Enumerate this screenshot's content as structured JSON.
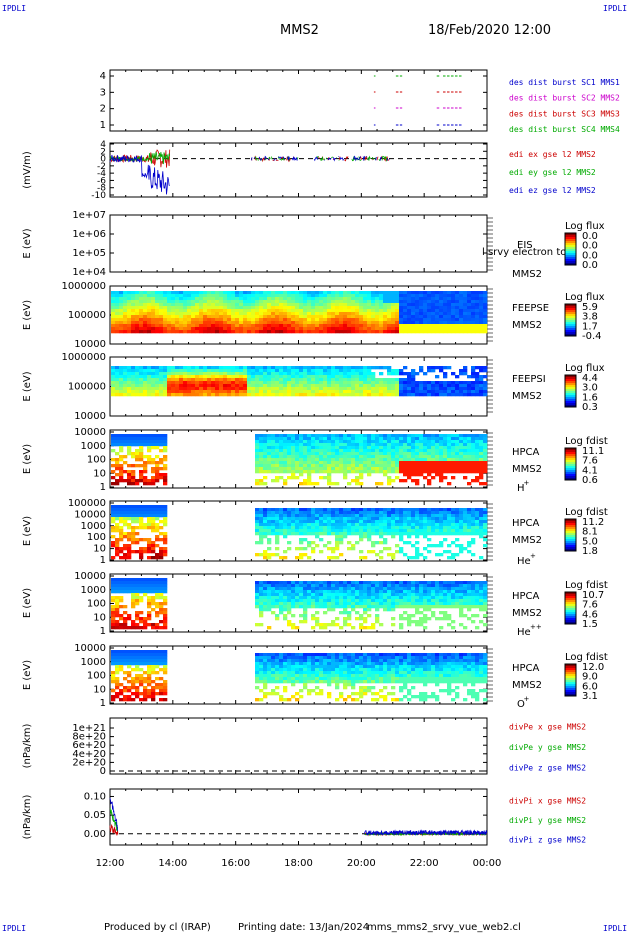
{
  "header": {
    "left_tag": "IPDLI",
    "right_tag": "IPDLI",
    "title": "MMS2",
    "datetime": "18/Feb/2020 12:00"
  },
  "footer": {
    "left_tag": "IPDLI",
    "right_tag": "IPDLI",
    "produced_by": "Produced by cl (IRAP)",
    "printing_date": "Printing date: 13/Jan/2024",
    "script_name": "mms_mms2_srvy_vue_web2.cl"
  },
  "colors": {
    "mms1": "#0000cc",
    "mms2": "#cc00cc",
    "mms3": "#cc0000",
    "mms4": "#00aa00",
    "red": "#cc0000",
    "green": "#00aa00",
    "blue": "#0000cc"
  },
  "time_axis": {
    "ticks": [
      "12:00",
      "14:00",
      "16:00",
      "18:00",
      "20:00",
      "22:00",
      "00:00"
    ],
    "range_hours": [
      12,
      24
    ]
  },
  "chart_data": [
    {
      "id": "burst",
      "type": "scatter",
      "ylabel": "",
      "yticks": [
        "4",
        "3",
        "2",
        "1"
      ],
      "legend": [
        {
          "label": "des dist burst SC1 MMS1",
          "color": "#0000cc"
        },
        {
          "label": "des dist burst SC2 MMS2",
          "color": "#cc00cc"
        },
        {
          "label": "des dist burst SC3 MMS3",
          "color": "#cc0000"
        },
        {
          "label": "des dist burst SC4 MMS4",
          "color": "#00aa00"
        }
      ],
      "intervals_hours": [
        [
          20.4,
          20.45
        ],
        [
          21.1,
          21.3
        ],
        [
          22.4,
          22.5
        ],
        [
          22.6,
          23.2
        ]
      ]
    },
    {
      "id": "edi",
      "type": "line",
      "ylabel": "(mV/m)",
      "yticks": [
        "4",
        "2",
        "0",
        "-2",
        "-4",
        "-6",
        "-8",
        "-10"
      ],
      "ylim": [
        -10,
        4
      ],
      "legend": [
        {
          "label": "edi ex gse l2 MMS2",
          "color": "#cc0000"
        },
        {
          "label": "edi ey gse l2 MMS2",
          "color": "#00aa00"
        },
        {
          "label": "edi ez gse l2 MMS2",
          "color": "#0000cc"
        }
      ],
      "data_intervals_hours": [
        [
          12.0,
          13.9
        ],
        [
          16.5,
          18.0
        ],
        [
          18.5,
          20.9
        ]
      ]
    },
    {
      "id": "eis",
      "type": "heatmap",
      "ylabel": "E (eV)",
      "yticks": [
        "1e+07",
        "1e+06",
        "1e+05",
        "1e+04"
      ],
      "label_lines": [
        "EIS",
        "MMS2"
      ],
      "overlay_text": "l srvy electron to",
      "colorbar": {
        "title": "Log flux",
        "ticks": [
          "0.0",
          "0.0",
          "0.0",
          "0.0"
        ]
      }
    },
    {
      "id": "feepse",
      "type": "heatmap",
      "ylabel": "E (eV)",
      "yticks": [
        "1000000",
        "100000",
        "10000"
      ],
      "label_lines": [
        "FEEPSE",
        "MMS2"
      ],
      "colorbar": {
        "title": "Log flux",
        "ticks": [
          "5.9",
          "3.8",
          "1.7",
          "-0.4"
        ]
      }
    },
    {
      "id": "feepsi",
      "type": "heatmap",
      "ylabel": "E (eV)",
      "yticks": [
        "1000000",
        "100000",
        "10000"
      ],
      "label_lines": [
        "FEEPSI",
        "MMS2"
      ],
      "colorbar": {
        "title": "Log flux",
        "ticks": [
          "4.4",
          "3.0",
          "1.6",
          "0.3"
        ]
      }
    },
    {
      "id": "hpca_h",
      "type": "heatmap",
      "ylabel": "E (eV)",
      "yticks": [
        "10000",
        "1000",
        "100",
        "10",
        "1"
      ],
      "label_lines": [
        "HPCA",
        "MMS2"
      ],
      "species": "H",
      "charge": "+",
      "colorbar": {
        "title": "Log fdist",
        "ticks": [
          "11.1",
          "7.6",
          "4.1",
          "0.6"
        ]
      }
    },
    {
      "id": "hpca_he1",
      "type": "heatmap",
      "ylabel": "E (eV)",
      "yticks": [
        "100000",
        "10000",
        "1000",
        "100",
        "10",
        "1"
      ],
      "label_lines": [
        "HPCA",
        "MMS2"
      ],
      "species": "He",
      "charge": "+",
      "colorbar": {
        "title": "Log fdist",
        "ticks": [
          "11.2",
          "8.1",
          "5.0",
          "1.8"
        ]
      }
    },
    {
      "id": "hpca_he2",
      "type": "heatmap",
      "ylabel": "E (eV)",
      "yticks": [
        "10000",
        "1000",
        "100",
        "10",
        "1"
      ],
      "label_lines": [
        "HPCA",
        "MMS2"
      ],
      "species": "He",
      "charge": "++",
      "colorbar": {
        "title": "Log fdist",
        "ticks": [
          "10.7",
          "7.6",
          "4.6",
          "1.5"
        ]
      }
    },
    {
      "id": "hpca_o",
      "type": "heatmap",
      "ylabel": "E (eV)",
      "yticks": [
        "10000",
        "1000",
        "100",
        "10",
        "1"
      ],
      "label_lines": [
        "HPCA",
        "MMS2"
      ],
      "species": "O",
      "charge": "+",
      "colorbar": {
        "title": "Log fdist",
        "ticks": [
          "12.0",
          "9.0",
          "6.0",
          "3.1"
        ]
      }
    },
    {
      "id": "divpe",
      "type": "line",
      "ylabel": "(nPa/km)",
      "yticks": [
        "1e+21",
        "8e+20",
        "6e+20",
        "4e+20",
        "2e+20",
        "0"
      ],
      "legend": [
        {
          "label": "divPe x gse MMS2",
          "color": "#cc0000"
        },
        {
          "label": "divPe y gse MMS2",
          "color": "#00aa00"
        },
        {
          "label": "divPe z gse MMS2",
          "color": "#0000cc"
        }
      ]
    },
    {
      "id": "divpi",
      "type": "line",
      "ylabel": "(nPa/km)",
      "yticks": [
        "0.10",
        "0.05",
        "0.00"
      ],
      "ylim": [
        -0.03,
        0.12
      ],
      "legend": [
        {
          "label": "divPi x gse MMS2",
          "color": "#cc0000"
        },
        {
          "label": "divPi y gse MMS2",
          "color": "#00aa00"
        },
        {
          "label": "divPi z gse MMS2",
          "color": "#0000cc"
        }
      ],
      "data_intervals_hours": [
        [
          12.0,
          12.25
        ],
        [
          20.1,
          24.0
        ]
      ]
    }
  ]
}
